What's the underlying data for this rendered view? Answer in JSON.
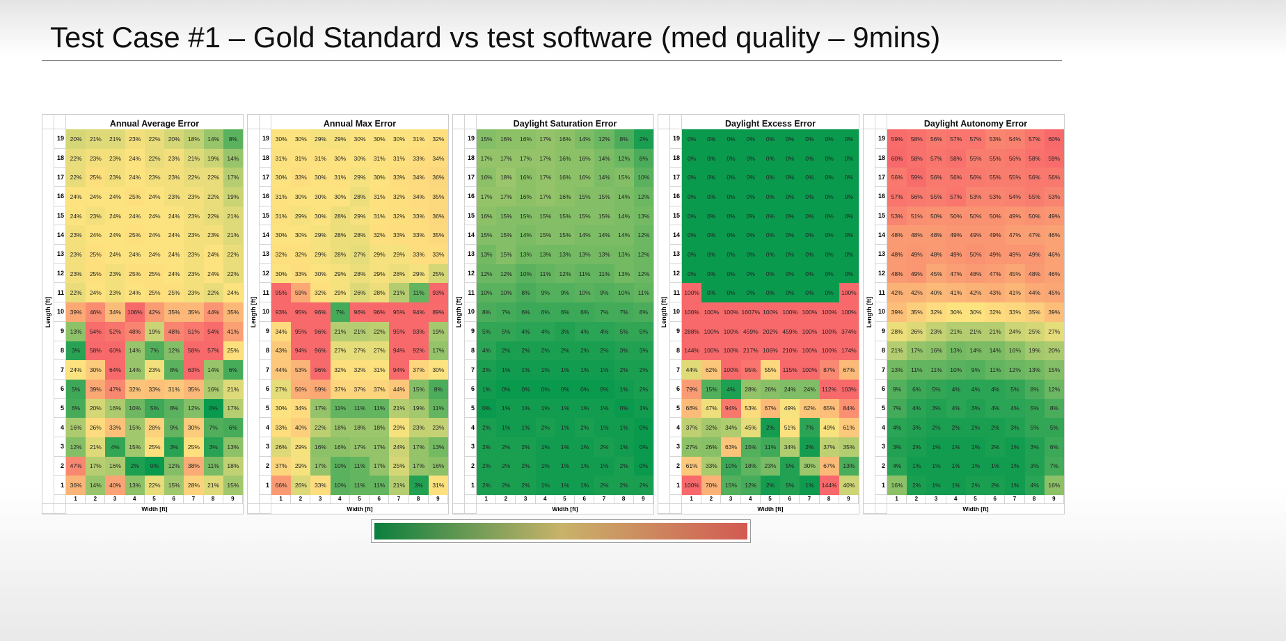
{
  "slide": {
    "title": "Test Case #1 – Gold Standard vs test software (med quality – 9mins)"
  },
  "colors": {
    "low": "#0a9a4e",
    "mid": "#fde37f",
    "high": "#f8696b",
    "colorbar": [
      "#0b7f3e",
      "#c8b36a",
      "#d25a52"
    ]
  },
  "chart_data": [
    {
      "type": "heatmap",
      "title": "Annual Average Error",
      "xlabel": "Width [ft]",
      "ylabel": "Length [ft]",
      "x": [
        1,
        2,
        3,
        4,
        5,
        6,
        7,
        8,
        9
      ],
      "y": [
        19,
        18,
        17,
        16,
        15,
        14,
        13,
        12,
        11,
        10,
        9,
        8,
        7,
        6,
        5,
        4,
        3,
        2,
        1
      ],
      "unit": "%",
      "values": [
        [
          20,
          21,
          21,
          23,
          22,
          20,
          18,
          14,
          8
        ],
        [
          22,
          23,
          23,
          24,
          22,
          23,
          21,
          19,
          14
        ],
        [
          22,
          25,
          23,
          24,
          23,
          23,
          22,
          22,
          17
        ],
        [
          24,
          24,
          24,
          25,
          24,
          23,
          23,
          22,
          19
        ],
        [
          24,
          23,
          24,
          24,
          24,
          24,
          23,
          22,
          21
        ],
        [
          23,
          24,
          24,
          25,
          24,
          24,
          23,
          23,
          21
        ],
        [
          23,
          25,
          24,
          24,
          24,
          24,
          23,
          24,
          22
        ],
        [
          23,
          25,
          23,
          25,
          25,
          24,
          23,
          24,
          22
        ],
        [
          22,
          24,
          23,
          24,
          25,
          25,
          23,
          22,
          24
        ],
        [
          39,
          46,
          34,
          106,
          42,
          35,
          35,
          44,
          35
        ],
        [
          13,
          54,
          52,
          48,
          19,
          48,
          51,
          54,
          41
        ],
        [
          3,
          58,
          60,
          14,
          7,
          12,
          58,
          57,
          25
        ],
        [
          24,
          30,
          64,
          14,
          23,
          8,
          63,
          14,
          6
        ],
        [
          5,
          39,
          47,
          32,
          33,
          31,
          35,
          16,
          21
        ],
        [
          6,
          20,
          16,
          10,
          5,
          8,
          12,
          0,
          17
        ],
        [
          16,
          26,
          33,
          15,
          28,
          9,
          30,
          7,
          6
        ],
        [
          12,
          21,
          4,
          15,
          25,
          3,
          25,
          3,
          13
        ],
        [
          47,
          17,
          16,
          2,
          0,
          12,
          38,
          11,
          18
        ],
        [
          36,
          14,
          40,
          13,
          22,
          15,
          28,
          21,
          15
        ]
      ]
    },
    {
      "type": "heatmap",
      "title": "Annual Max Error",
      "xlabel": "Width [ft]",
      "ylabel": "Length [ft]",
      "x": [
        1,
        2,
        3,
        4,
        5,
        6,
        7,
        8,
        9
      ],
      "y": [
        19,
        18,
        17,
        16,
        15,
        14,
        13,
        12,
        11,
        10,
        9,
        8,
        7,
        6,
        5,
        4,
        3,
        2,
        1
      ],
      "unit": "%",
      "values": [
        [
          30,
          30,
          29,
          29,
          30,
          30,
          30,
          31,
          32
        ],
        [
          31,
          31,
          31,
          30,
          30,
          31,
          31,
          33,
          34
        ],
        [
          30,
          33,
          30,
          31,
          29,
          30,
          33,
          34,
          36
        ],
        [
          31,
          30,
          30,
          30,
          28,
          31,
          32,
          34,
          35
        ],
        [
          31,
          29,
          30,
          28,
          29,
          31,
          32,
          33,
          36
        ],
        [
          30,
          30,
          29,
          28,
          28,
          32,
          33,
          33,
          35
        ],
        [
          32,
          32,
          29,
          28,
          27,
          29,
          29,
          33,
          33
        ],
        [
          30,
          33,
          30,
          29,
          28,
          29,
          28,
          29,
          25
        ],
        [
          95,
          59,
          32,
          29,
          26,
          28,
          21,
          11,
          93
        ],
        [
          93,
          95,
          96,
          7,
          96,
          96,
          95,
          94,
          89
        ],
        [
          34,
          95,
          96,
          21,
          21,
          22,
          95,
          93,
          19
        ],
        [
          43,
          94,
          96,
          27,
          27,
          27,
          94,
          92,
          17
        ],
        [
          44,
          53,
          96,
          32,
          32,
          31,
          94,
          37,
          30
        ],
        [
          27,
          56,
          59,
          37,
          37,
          37,
          44,
          15,
          8
        ],
        [
          30,
          34,
          17,
          11,
          11,
          11,
          21,
          19,
          11
        ],
        [
          33,
          40,
          22,
          18,
          18,
          18,
          29,
          23,
          23
        ],
        [
          26,
          29,
          16,
          16,
          17,
          17,
          24,
          17,
          13
        ],
        [
          37,
          29,
          17,
          10,
          11,
          17,
          25,
          17,
          16
        ],
        [
          66,
          26,
          33,
          10,
          11,
          11,
          21,
          3,
          31
        ]
      ]
    },
    {
      "type": "heatmap",
      "title": "Daylight Saturation Error",
      "xlabel": "Width [ft]",
      "ylabel": "Length [ft]",
      "x": [
        1,
        2,
        3,
        4,
        5,
        6,
        7,
        8,
        9
      ],
      "y": [
        19,
        18,
        17,
        16,
        15,
        14,
        13,
        12,
        11,
        10,
        9,
        8,
        7,
        6,
        5,
        4,
        3,
        2,
        1
      ],
      "unit": "%",
      "values": [
        [
          15,
          16,
          16,
          17,
          16,
          14,
          12,
          8,
          2
        ],
        [
          17,
          17,
          17,
          17,
          16,
          16,
          14,
          12,
          8
        ],
        [
          16,
          18,
          16,
          17,
          16,
          16,
          14,
          15,
          10
        ],
        [
          17,
          17,
          16,
          17,
          16,
          15,
          15,
          14,
          12
        ],
        [
          16,
          15,
          15,
          15,
          15,
          15,
          15,
          14,
          13
        ],
        [
          15,
          15,
          14,
          15,
          15,
          14,
          14,
          14,
          12
        ],
        [
          13,
          15,
          13,
          13,
          13,
          13,
          13,
          13,
          12
        ],
        [
          12,
          12,
          10,
          11,
          12,
          11,
          11,
          13,
          12
        ],
        [
          10,
          10,
          8,
          9,
          9,
          10,
          9,
          10,
          11
        ],
        [
          8,
          7,
          6,
          6,
          6,
          6,
          7,
          7,
          8
        ],
        [
          5,
          5,
          4,
          4,
          3,
          4,
          4,
          5,
          5
        ],
        [
          4,
          2,
          2,
          2,
          2,
          2,
          2,
          3,
          3
        ],
        [
          2,
          1,
          1,
          1,
          1,
          1,
          1,
          2,
          2
        ],
        [
          1,
          0,
          0,
          0,
          0,
          0,
          0,
          1,
          2
        ],
        [
          0,
          1,
          1,
          1,
          1,
          1,
          1,
          0,
          1
        ],
        [
          2,
          1,
          1,
          2,
          1,
          2,
          1,
          1,
          0
        ],
        [
          2,
          2,
          2,
          1,
          1,
          1,
          2,
          1,
          0
        ],
        [
          2,
          2,
          2,
          1,
          1,
          1,
          1,
          2,
          0
        ],
        [
          2,
          2,
          2,
          1,
          1,
          1,
          2,
          2,
          2
        ]
      ]
    },
    {
      "type": "heatmap",
      "title": "Daylight Excess Error",
      "xlabel": "Width [ft]",
      "ylabel": "Length [ft]",
      "x": [
        1,
        2,
        3,
        4,
        5,
        6,
        7,
        8,
        9
      ],
      "y": [
        19,
        18,
        17,
        16,
        15,
        14,
        13,
        12,
        11,
        10,
        9,
        8,
        7,
        6,
        5,
        4,
        3,
        2,
        1
      ],
      "unit": "%",
      "values": [
        [
          0,
          0,
          0,
          0,
          0,
          0,
          0,
          0,
          0
        ],
        [
          0,
          0,
          0,
          0,
          0,
          0,
          0,
          0,
          0
        ],
        [
          0,
          0,
          0,
          0,
          0,
          0,
          0,
          0,
          0
        ],
        [
          0,
          0,
          0,
          0,
          0,
          0,
          0,
          0,
          0
        ],
        [
          0,
          0,
          0,
          0,
          0,
          0,
          0,
          0,
          0
        ],
        [
          0,
          0,
          0,
          0,
          0,
          0,
          0,
          0,
          0
        ],
        [
          0,
          0,
          0,
          0,
          0,
          0,
          0,
          0,
          0
        ],
        [
          0,
          0,
          0,
          0,
          0,
          0,
          0,
          0,
          0
        ],
        [
          100,
          0,
          0,
          0,
          0,
          0,
          0,
          0,
          100
        ],
        [
          100,
          100,
          100,
          1607,
          100,
          100,
          100,
          100,
          100
        ],
        [
          288,
          100,
          100,
          459,
          202,
          459,
          100,
          100,
          374
        ],
        [
          144,
          100,
          100,
          217,
          106,
          210,
          100,
          100,
          174
        ],
        [
          44,
          62,
          100,
          95,
          55,
          115,
          100,
          87,
          67
        ],
        [
          79,
          15,
          4,
          28,
          26,
          24,
          24,
          112,
          103
        ],
        [
          66,
          47,
          94,
          53,
          67,
          49,
          62,
          65,
          84
        ],
        [
          37,
          32,
          34,
          45,
          2,
          51,
          7,
          49,
          61
        ],
        [
          27,
          26,
          63,
          15,
          11,
          34,
          2,
          37,
          35
        ],
        [
          61,
          33,
          10,
          18,
          23,
          5,
          30,
          67,
          13
        ],
        [
          100,
          70,
          15,
          12,
          2,
          5,
          1,
          144,
          40
        ]
      ]
    },
    {
      "type": "heatmap",
      "title": "Daylight Autonomy Error",
      "xlabel": "Width [ft]",
      "ylabel": "Length [ft]",
      "x": [
        1,
        2,
        3,
        4,
        5,
        6,
        7,
        8,
        9
      ],
      "y": [
        19,
        18,
        17,
        16,
        15,
        14,
        13,
        12,
        11,
        10,
        9,
        8,
        7,
        6,
        5,
        4,
        3,
        2,
        1
      ],
      "unit": "%",
      "values": [
        [
          59,
          58,
          56,
          57,
          57,
          53,
          54,
          57,
          60
        ],
        [
          60,
          58,
          57,
          58,
          55,
          55,
          56,
          58,
          59
        ],
        [
          56,
          59,
          56,
          56,
          56,
          55,
          55,
          56,
          56
        ],
        [
          57,
          56,
          55,
          57,
          53,
          53,
          54,
          55,
          53
        ],
        [
          53,
          51,
          50,
          50,
          50,
          50,
          49,
          50,
          49
        ],
        [
          48,
          48,
          48,
          49,
          49,
          49,
          47,
          47,
          46
        ],
        [
          48,
          49,
          48,
          49,
          50,
          49,
          49,
          49,
          46
        ],
        [
          48,
          49,
          45,
          47,
          48,
          47,
          45,
          48,
          46
        ],
        [
          42,
          42,
          40,
          41,
          42,
          43,
          41,
          44,
          45
        ],
        [
          39,
          35,
          32,
          30,
          30,
          32,
          33,
          35,
          39
        ],
        [
          28,
          26,
          23,
          21,
          21,
          21,
          24,
          25,
          27
        ],
        [
          21,
          17,
          16,
          13,
          14,
          14,
          16,
          19,
          20
        ],
        [
          13,
          11,
          11,
          10,
          9,
          11,
          12,
          13,
          15
        ],
        [
          9,
          6,
          5,
          4,
          4,
          4,
          5,
          8,
          12
        ],
        [
          7,
          4,
          3,
          4,
          3,
          4,
          4,
          5,
          8
        ],
        [
          4,
          3,
          2,
          2,
          2,
          2,
          3,
          5,
          5
        ],
        [
          3,
          2,
          1,
          1,
          1,
          2,
          1,
          3,
          6
        ],
        [
          4,
          1,
          1,
          1,
          1,
          1,
          1,
          3,
          7
        ],
        [
          16,
          2,
          1,
          1,
          2,
          2,
          1,
          4,
          16
        ]
      ]
    }
  ]
}
